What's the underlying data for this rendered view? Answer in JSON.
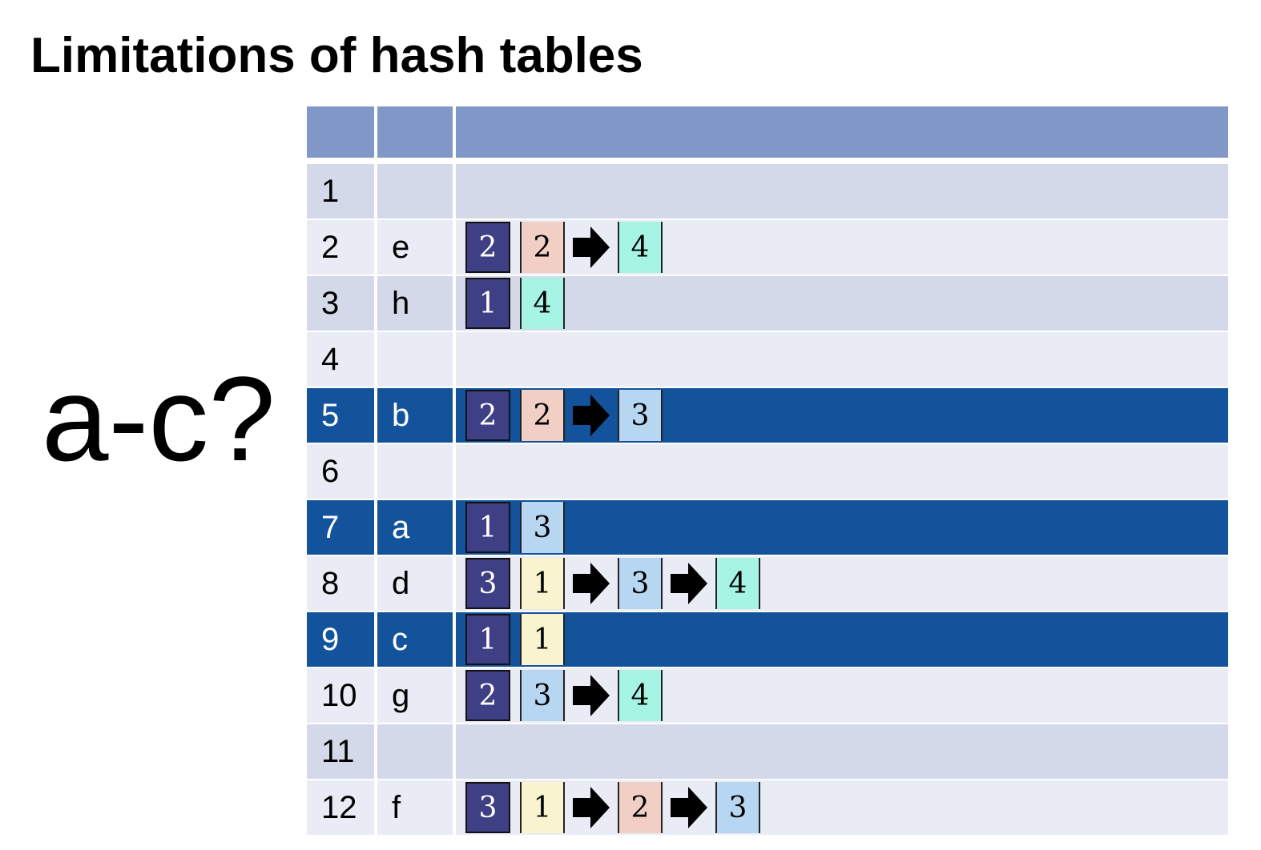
{
  "title": "Limitations of hash tables",
  "side_question": "a-c?",
  "colors": {
    "header": "#8097c8",
    "row_shade_a": "#d4d9e9",
    "row_shade_b": "#e9ecf4",
    "row_highlight": "#13539b",
    "box_navy": "#3f3f86",
    "box_pink": "#f2cfc4",
    "box_mint": "#a6f4e3",
    "box_sky": "#b6d6f2",
    "box_cream": "#f9f4cf"
  },
  "table": {
    "header": [
      "",
      "",
      ""
    ],
    "rows": [
      {
        "index": "1",
        "key": "",
        "style": "shade-a",
        "chain": []
      },
      {
        "index": "2",
        "key": "e",
        "style": "shade-b",
        "chain": [
          {
            "value": "2",
            "color": "navy"
          },
          {
            "value": "2",
            "color": "pink"
          },
          {
            "arrow": true
          },
          {
            "value": "4",
            "color": "mint"
          }
        ]
      },
      {
        "index": "3",
        "key": "h",
        "style": "shade-a",
        "chain": [
          {
            "value": "1",
            "color": "navy"
          },
          {
            "value": "4",
            "color": "mint"
          }
        ]
      },
      {
        "index": "4",
        "key": "",
        "style": "shade-b",
        "chain": []
      },
      {
        "index": "5",
        "key": "b",
        "style": "highlight",
        "chain": [
          {
            "value": "2",
            "color": "navy"
          },
          {
            "value": "2",
            "color": "pink"
          },
          {
            "arrow": true
          },
          {
            "value": "3",
            "color": "sky"
          }
        ]
      },
      {
        "index": "6",
        "key": "",
        "style": "shade-b",
        "chain": []
      },
      {
        "index": "7",
        "key": "a",
        "style": "highlight",
        "chain": [
          {
            "value": "1",
            "color": "navy"
          },
          {
            "value": "3",
            "color": "sky"
          }
        ]
      },
      {
        "index": "8",
        "key": "d",
        "style": "shade-b",
        "chain": [
          {
            "value": "3",
            "color": "navy"
          },
          {
            "value": "1",
            "color": "cream"
          },
          {
            "arrow": true
          },
          {
            "value": "3",
            "color": "sky"
          },
          {
            "arrow": true
          },
          {
            "value": "4",
            "color": "mint"
          }
        ]
      },
      {
        "index": "9",
        "key": "c",
        "style": "highlight",
        "chain": [
          {
            "value": "1",
            "color": "navy"
          },
          {
            "value": "1",
            "color": "cream"
          }
        ]
      },
      {
        "index": "10",
        "key": "g",
        "style": "shade-b",
        "chain": [
          {
            "value": "2",
            "color": "navy"
          },
          {
            "value": "3",
            "color": "sky"
          },
          {
            "arrow": true
          },
          {
            "value": "4",
            "color": "mint"
          }
        ]
      },
      {
        "index": "11",
        "key": "",
        "style": "shade-a",
        "chain": []
      },
      {
        "index": "12",
        "key": "f",
        "style": "shade-b",
        "chain": [
          {
            "value": "3",
            "color": "navy"
          },
          {
            "value": "1",
            "color": "cream"
          },
          {
            "arrow": true
          },
          {
            "value": "2",
            "color": "pink"
          },
          {
            "arrow": true
          },
          {
            "value": "3",
            "color": "sky"
          }
        ]
      }
    ]
  }
}
